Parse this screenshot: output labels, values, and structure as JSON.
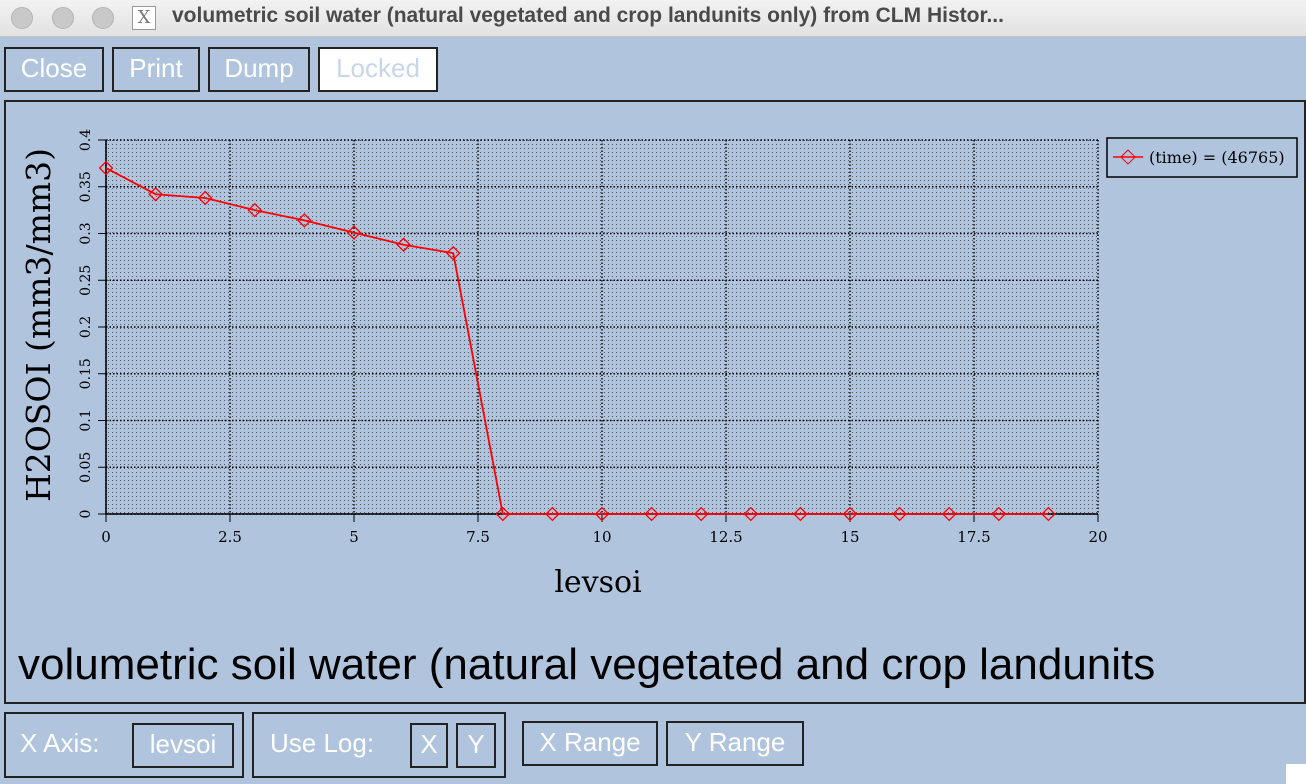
{
  "window": {
    "title": "volumetric soil water (natural vegetated and crop landunits only) from CLM Histor..."
  },
  "toolbar": {
    "close": "Close",
    "print": "Print",
    "dump": "Dump",
    "locked": "Locked"
  },
  "plot_title": "volumetric soil water (natural vegetated and crop landunits",
  "bottom": {
    "x_axis_label": "X Axis:",
    "x_axis_value": "levsoi",
    "use_log_label": "Use Log:",
    "log_x": "X",
    "log_y": "Y",
    "x_range": "X Range",
    "y_range": "Y Range"
  },
  "colors": {
    "background": "#b0c4de",
    "series": "#ff0000"
  },
  "chart_data": {
    "type": "line",
    "xlabel": "levsoi",
    "ylabel": "H2OSOI (mm3/mm3)",
    "xlim": [
      0,
      20
    ],
    "ylim": [
      0,
      0.4
    ],
    "xticks": [
      "0",
      "2.5",
      "5",
      "7.5",
      "10",
      "12.5",
      "15",
      "17.5",
      "20"
    ],
    "yticks": [
      "0",
      "0.05",
      "0.1",
      "0.15",
      "0.2",
      "0.25",
      "0.3",
      "0.35",
      "0.4"
    ],
    "grid": true,
    "legend_position": "top-right",
    "series": [
      {
        "name": "(time) = (46765)",
        "x": [
          0,
          1,
          2,
          3,
          4,
          5,
          6,
          7,
          8,
          9,
          10,
          11,
          12,
          13,
          14,
          15,
          16,
          17,
          18,
          19
        ],
        "y": [
          0.37,
          0.342,
          0.338,
          0.325,
          0.314,
          0.301,
          0.288,
          0.279,
          0,
          0,
          0,
          0,
          0,
          0,
          0,
          0,
          0,
          0,
          0,
          0
        ]
      }
    ]
  }
}
